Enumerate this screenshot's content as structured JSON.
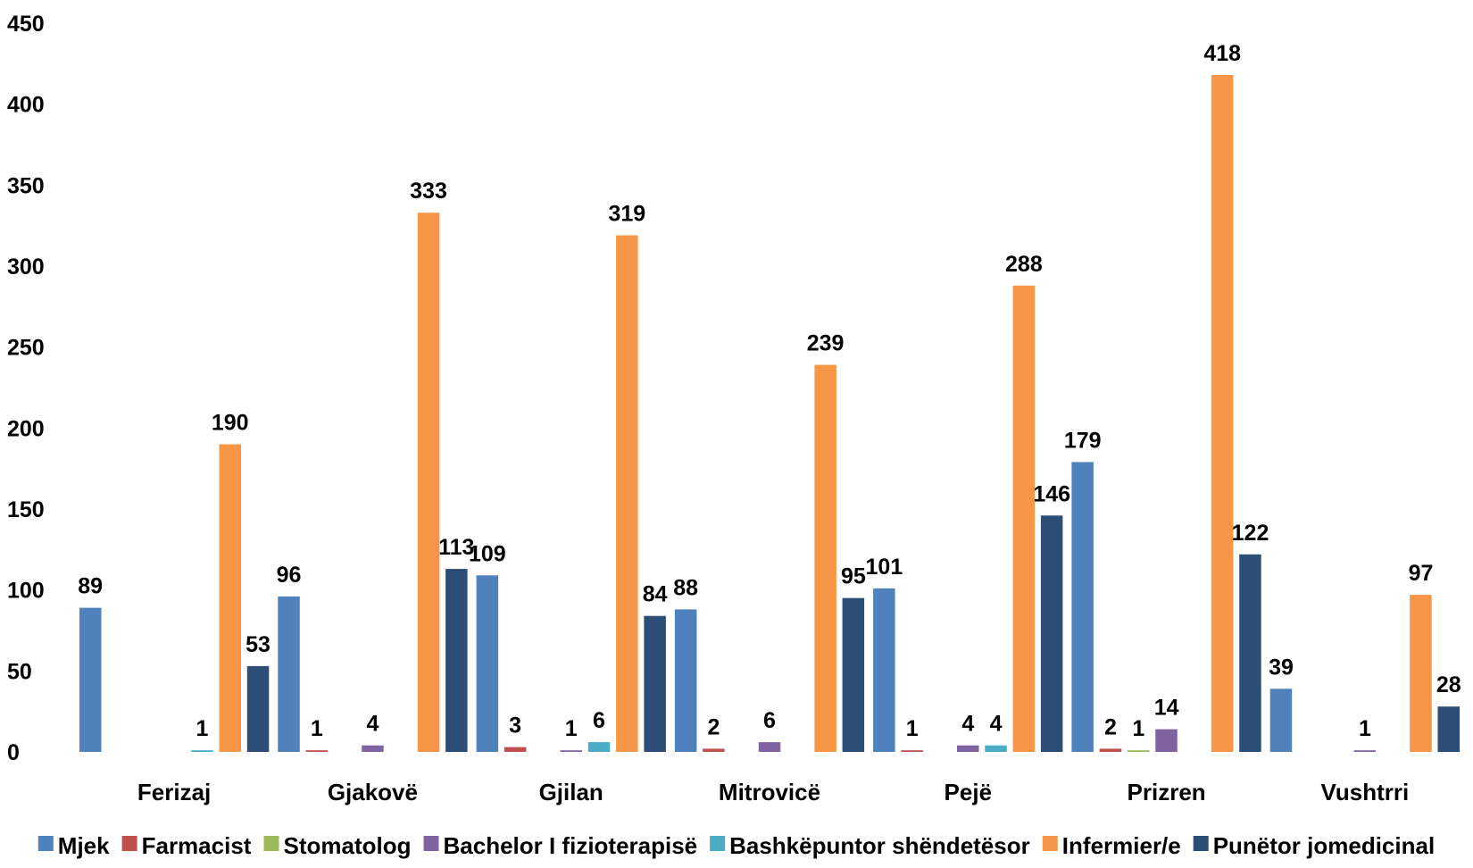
{
  "chart_data": {
    "type": "bar",
    "categories": [
      "Ferizaj",
      "Gjakovë",
      "Gjilan",
      "Mitrovicë",
      "Pejë",
      "Prizren",
      "Vushtrri"
    ],
    "ylim": [
      0,
      450
    ],
    "yticks": [
      0,
      50,
      100,
      150,
      200,
      250,
      300,
      350,
      400,
      450
    ],
    "grid": false,
    "legend_position": "bottom",
    "series": [
      {
        "name": "Mjek",
        "color": "#4f81bd",
        "values": [
          89,
          96,
          109,
          88,
          101,
          179,
          39
        ]
      },
      {
        "name": "Farmacist",
        "color": "#c0504d",
        "values": [
          null,
          1,
          3,
          2,
          1,
          2,
          null
        ]
      },
      {
        "name": "Stomatolog",
        "color": "#9bbb59",
        "values": [
          null,
          null,
          null,
          null,
          null,
          1,
          null
        ]
      },
      {
        "name": "Bachelor I fizioterapisë",
        "color": "#8064a2",
        "values": [
          null,
          4,
          1,
          6,
          4,
          14,
          1
        ]
      },
      {
        "name": "Bashkëpuntor shëndetësor",
        "color": "#4bacc6",
        "values": [
          1,
          null,
          6,
          null,
          4,
          null,
          null
        ]
      },
      {
        "name": "Infermier/e",
        "color": "#f79646",
        "values": [
          190,
          333,
          319,
          239,
          288,
          418,
          97
        ]
      },
      {
        "name": "Punëtor jomedicinal",
        "color": "#2c4d75",
        "values": [
          53,
          113,
          84,
          95,
          146,
          122,
          28
        ]
      }
    ]
  }
}
